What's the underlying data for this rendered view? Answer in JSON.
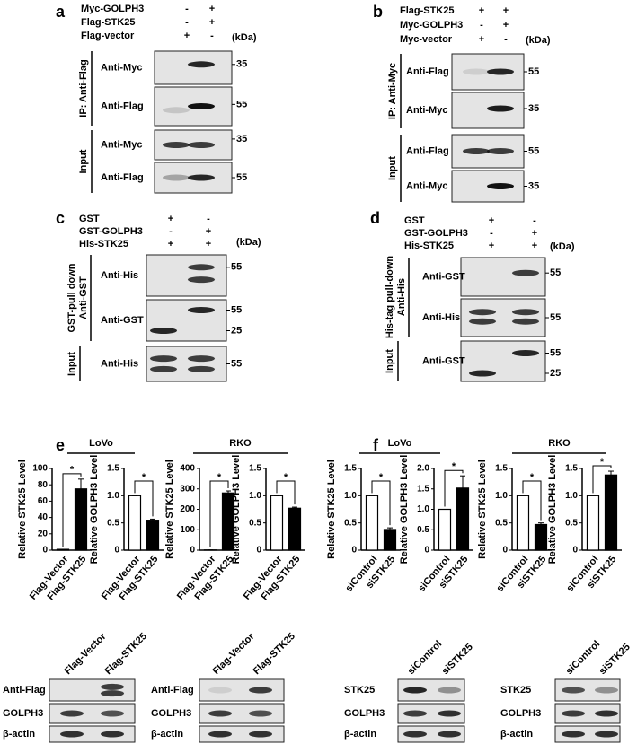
{
  "panels": {
    "a": {
      "letter": "a",
      "kda": "(kDa)",
      "conditions": [
        {
          "name": "Myc-GOLPH3",
          "lanes": [
            "-",
            "+"
          ]
        },
        {
          "name": "Flag-STK25",
          "lanes": [
            "-",
            "+"
          ]
        },
        {
          "name": "Flag-vector",
          "lanes": [
            "+",
            "-"
          ]
        }
      ],
      "groups": [
        {
          "label": "IP: Anti-Flag",
          "blots": [
            {
              "name": "Anti-Myc",
              "markers": [
                35
              ]
            },
            {
              "name": "Anti-Flag",
              "markers": [
                55
              ]
            }
          ]
        },
        {
          "label": "Input",
          "blots": [
            {
              "name": "Anti-Myc",
              "markers": [
                35
              ]
            },
            {
              "name": "Anti-Flag",
              "markers": [
                55
              ]
            }
          ]
        }
      ]
    },
    "b": {
      "letter": "b",
      "kda": "(kDa)",
      "conditions": [
        {
          "name": "Flag-STK25",
          "lanes": [
            "+",
            "+"
          ]
        },
        {
          "name": "Myc-GOLPH3",
          "lanes": [
            "-",
            "+"
          ]
        },
        {
          "name": "Myc-vector",
          "lanes": [
            "+",
            "-"
          ]
        }
      ],
      "groups": [
        {
          "label": "IP: Anti-Myc",
          "blots": [
            {
              "name": "Anti-Flag",
              "markers": [
                55
              ]
            },
            {
              "name": "Anti-Myc",
              "markers": [
                35
              ]
            }
          ]
        },
        {
          "label": "Input",
          "blots": [
            {
              "name": "Anti-Flag",
              "markers": [
                55
              ]
            },
            {
              "name": "Anti-Myc",
              "markers": [
                35
              ]
            }
          ]
        }
      ]
    },
    "c": {
      "letter": "c",
      "kda": "(kDa)",
      "conditions": [
        {
          "name": "GST",
          "lanes": [
            "+",
            "-"
          ]
        },
        {
          "name": "GST-GOLPH3",
          "lanes": [
            "-",
            "+"
          ]
        },
        {
          "name": "His-STK25",
          "lanes": [
            "+",
            "+"
          ]
        }
      ],
      "groups": [
        {
          "label": "GST-pull down",
          "sublabel": "Anti-GST",
          "blots": [
            {
              "name": "Anti-His",
              "markers": [
                55
              ]
            },
            {
              "name": "Anti-GST",
              "markers": [
                55,
                25
              ]
            }
          ]
        },
        {
          "label": "Input",
          "blots": [
            {
              "name": "Anti-His",
              "markers": [
                55
              ]
            }
          ]
        }
      ]
    },
    "d": {
      "letter": "d",
      "kda": "(kDa)",
      "conditions": [
        {
          "name": "GST",
          "lanes": [
            "+",
            "-"
          ]
        },
        {
          "name": "GST-GOLPH3",
          "lanes": [
            "-",
            "+"
          ]
        },
        {
          "name": "His-STK25",
          "lanes": [
            "+",
            "+"
          ]
        }
      ],
      "groups": [
        {
          "label": "His-tag pull-down",
          "sublabel": "Anti-His",
          "blots": [
            {
              "name": "Anti-GST",
              "markers": [
                55
              ]
            },
            {
              "name": "Anti-His",
              "markers": [
                55
              ]
            }
          ]
        },
        {
          "label": "Input",
          "blots": [
            {
              "name": "Anti-GST",
              "markers": [
                55,
                25
              ]
            }
          ]
        }
      ]
    },
    "e": {
      "letter": "e",
      "cell_lines": [
        "LoVo",
        "RKO"
      ],
      "blot_sets": [
        {
          "lanes": [
            "Flag-Vector",
            "Flag-STK25"
          ],
          "blots": [
            "Anti-Flag",
            "GOLPH3",
            "β-actin"
          ]
        },
        {
          "lanes": [
            "Flag-Vector",
            "Flag-STK25"
          ],
          "blots": [
            "Anti-Flag",
            "GOLPH3",
            "β-actin"
          ]
        }
      ]
    },
    "f": {
      "letter": "f",
      "cell_lines": [
        "LoVo",
        "RKO"
      ],
      "blot_sets": [
        {
          "lanes": [
            "siControl",
            "siSTK25"
          ],
          "blots": [
            "STK25",
            "GOLPH3",
            "β-actin"
          ]
        },
        {
          "lanes": [
            "siControl",
            "siSTK25"
          ],
          "blots": [
            "STK25",
            "GOLPH3",
            "β-actin"
          ]
        }
      ]
    }
  },
  "chart_data": [
    {
      "type": "bar",
      "y_label": "Relative STK25 Level",
      "categories": [
        "Flag-Vector",
        "Flag-STK25"
      ],
      "values": [
        1,
        75
      ],
      "errors": [
        0,
        12
      ],
      "colors": [
        "#ffffff",
        "#000000"
      ],
      "ylim": [
        0,
        100
      ],
      "yticks": [
        0,
        20,
        40,
        60,
        80,
        100
      ],
      "annotation": "*"
    },
    {
      "type": "bar",
      "y_label": "Relative GOLPH3 Level",
      "categories": [
        "Flag-Vector",
        "Flag-STK25"
      ],
      "values": [
        1,
        0.55
      ],
      "errors": [
        0,
        0.02
      ],
      "colors": [
        "#ffffff",
        "#000000"
      ],
      "ylim": [
        0,
        1.5
      ],
      "yticks": [
        0,
        0.5,
        {
          "value": 1,
          "label": "1.0"
        },
        1.5
      ],
      "annotation": "*"
    },
    {
      "type": "bar",
      "y_label": "Relative STK25 Level",
      "categories": [
        "Flag-Vector",
        "Flag-STK25"
      ],
      "values": [
        1,
        280
      ],
      "errors": [
        0,
        10
      ],
      "colors": [
        "#ffffff",
        "#000000"
      ],
      "ylim": [
        0,
        400
      ],
      "yticks": [
        0,
        100,
        200,
        300,
        400
      ],
      "annotation": "*"
    },
    {
      "type": "bar",
      "y_label": "Relative GOLPH3 Level",
      "categories": [
        "Flag-Vector",
        "Flag-STK25"
      ],
      "values": [
        1,
        0.77
      ],
      "errors": [
        0,
        0.02
      ],
      "colors": [
        "#ffffff",
        "#000000"
      ],
      "ylim": [
        0,
        1.5
      ],
      "yticks": [
        0,
        0.5,
        {
          "value": 1,
          "label": "1.0"
        },
        1.5
      ],
      "annotation": "*"
    },
    {
      "type": "bar",
      "y_label": "Relative STK25 Level",
      "categories": [
        "siControl",
        "siSTK25"
      ],
      "values": [
        1,
        0.38
      ],
      "errors": [
        0,
        0.03
      ],
      "colors": [
        "#ffffff",
        "#000000"
      ],
      "ylim": [
        0,
        1.5
      ],
      "yticks": [
        0,
        0.5,
        {
          "value": 1,
          "label": "1.0"
        },
        1.5
      ],
      "annotation": "*"
    },
    {
      "type": "bar",
      "y_label": "Relative GOLPH3 Level",
      "categories": [
        "siControl",
        "siSTK25"
      ],
      "values": [
        1,
        1.52
      ],
      "errors": [
        0,
        0.3
      ],
      "colors": [
        "#ffffff",
        "#000000"
      ],
      "ylim": [
        0,
        2
      ],
      "yticks": [
        0,
        0.5,
        {
          "value": 1,
          "label": "1.0"
        },
        1.5,
        {
          "value": 2,
          "label": "2.0"
        }
      ],
      "annotation": "*"
    },
    {
      "type": "bar",
      "y_label": "Relative STK25 Level",
      "categories": [
        "siControl",
        "siSTK25"
      ],
      "values": [
        1,
        0.47
      ],
      "errors": [
        0,
        0.03
      ],
      "colors": [
        "#ffffff",
        "#000000"
      ],
      "ylim": [
        0,
        1.5
      ],
      "yticks": [
        0,
        0.5,
        {
          "value": 1,
          "label": "1.0"
        },
        1.5
      ],
      "annotation": "*"
    },
    {
      "type": "bar",
      "y_label": "Relative GOLPH3 Level",
      "categories": [
        "siControl",
        "siSTK25"
      ],
      "values": [
        1,
        1.38
      ],
      "errors": [
        0,
        0.07
      ],
      "colors": [
        "#ffffff",
        "#000000"
      ],
      "ylim": [
        0,
        1.5
      ],
      "yticks": [
        0,
        0.5,
        {
          "value": 1,
          "label": "1.0"
        },
        1.5
      ],
      "annotation": "*"
    }
  ]
}
